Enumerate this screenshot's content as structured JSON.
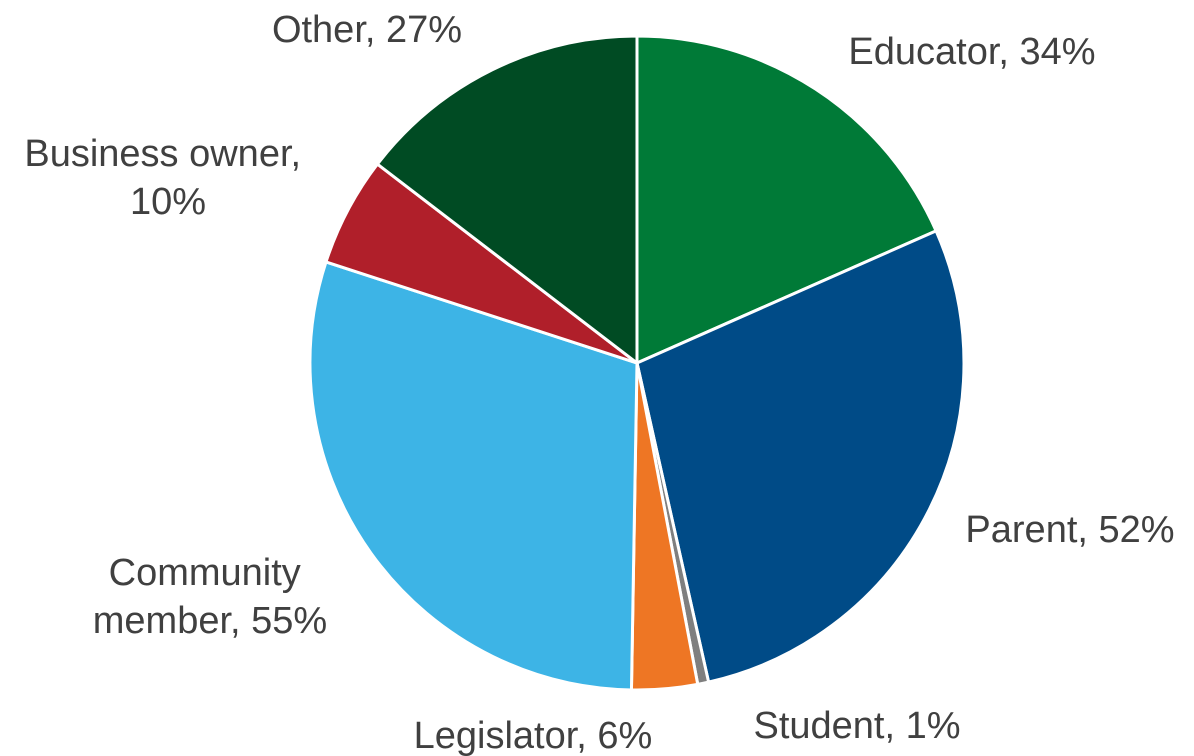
{
  "chart_data": {
    "type": "pie",
    "title": "",
    "start_angle_deg": 0,
    "direction": "clockwise",
    "slices": [
      {
        "label": "Educator",
        "value": 34,
        "display": "Educator, 34%",
        "color": "#007a37"
      },
      {
        "label": "Parent",
        "value": 52,
        "display": "Parent, 52%",
        "color": "#004b87"
      },
      {
        "label": "Student",
        "value": 1,
        "display": "Student, 1%",
        "color": "#7f7f7f"
      },
      {
        "label": "Legislator",
        "value": 6,
        "display": "Legislator, 6%",
        "color": "#ee7624"
      },
      {
        "label": "Community member",
        "value": 55,
        "display": "Community member, 55%",
        "color": "#3db4e6"
      },
      {
        "label": "Business owner",
        "value": 10,
        "display": "Business owner, 10%",
        "color": "#b01f2a"
      },
      {
        "label": "Other",
        "value": 27,
        "display": "Other, 27%",
        "color": "#004b23"
      }
    ]
  }
}
